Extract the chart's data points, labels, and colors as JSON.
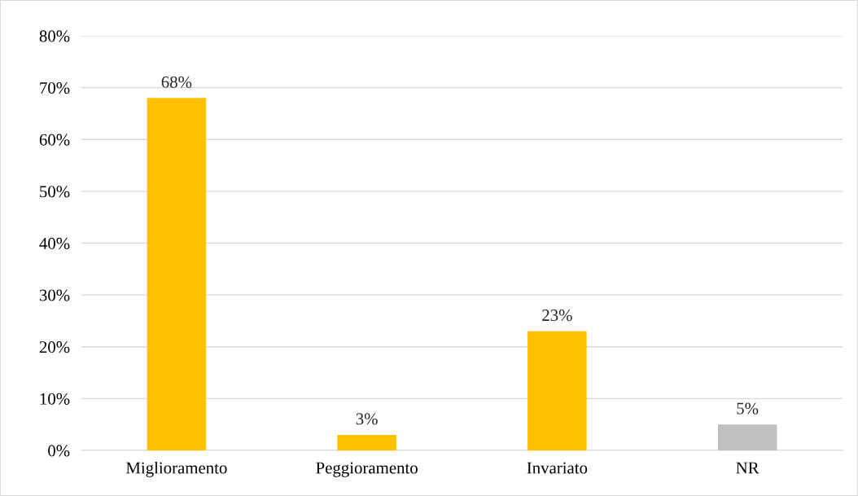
{
  "chart_data": {
    "type": "bar",
    "categories": [
      "Miglioramento",
      "Peggioramento",
      "Invariato",
      "NR"
    ],
    "values": [
      68,
      3,
      23,
      5
    ],
    "colors": [
      "#ffc000",
      "#ffc000",
      "#ffc000",
      "#bfbfbf"
    ],
    "value_labels": [
      "68%",
      "3%",
      "23%",
      "5%"
    ],
    "ylim": [
      0,
      80
    ],
    "yticks": [
      {
        "value": 0,
        "label": "0%"
      },
      {
        "value": 10,
        "label": "10%"
      },
      {
        "value": 20,
        "label": "20%"
      },
      {
        "value": 30,
        "label": "30%"
      },
      {
        "value": 40,
        "label": "40%"
      },
      {
        "value": 50,
        "label": "50%"
      },
      {
        "value": 60,
        "label": "60%"
      },
      {
        "value": 70,
        "label": "70%"
      },
      {
        "value": 80,
        "label": "80%"
      }
    ],
    "grid": "y",
    "legend": false
  }
}
